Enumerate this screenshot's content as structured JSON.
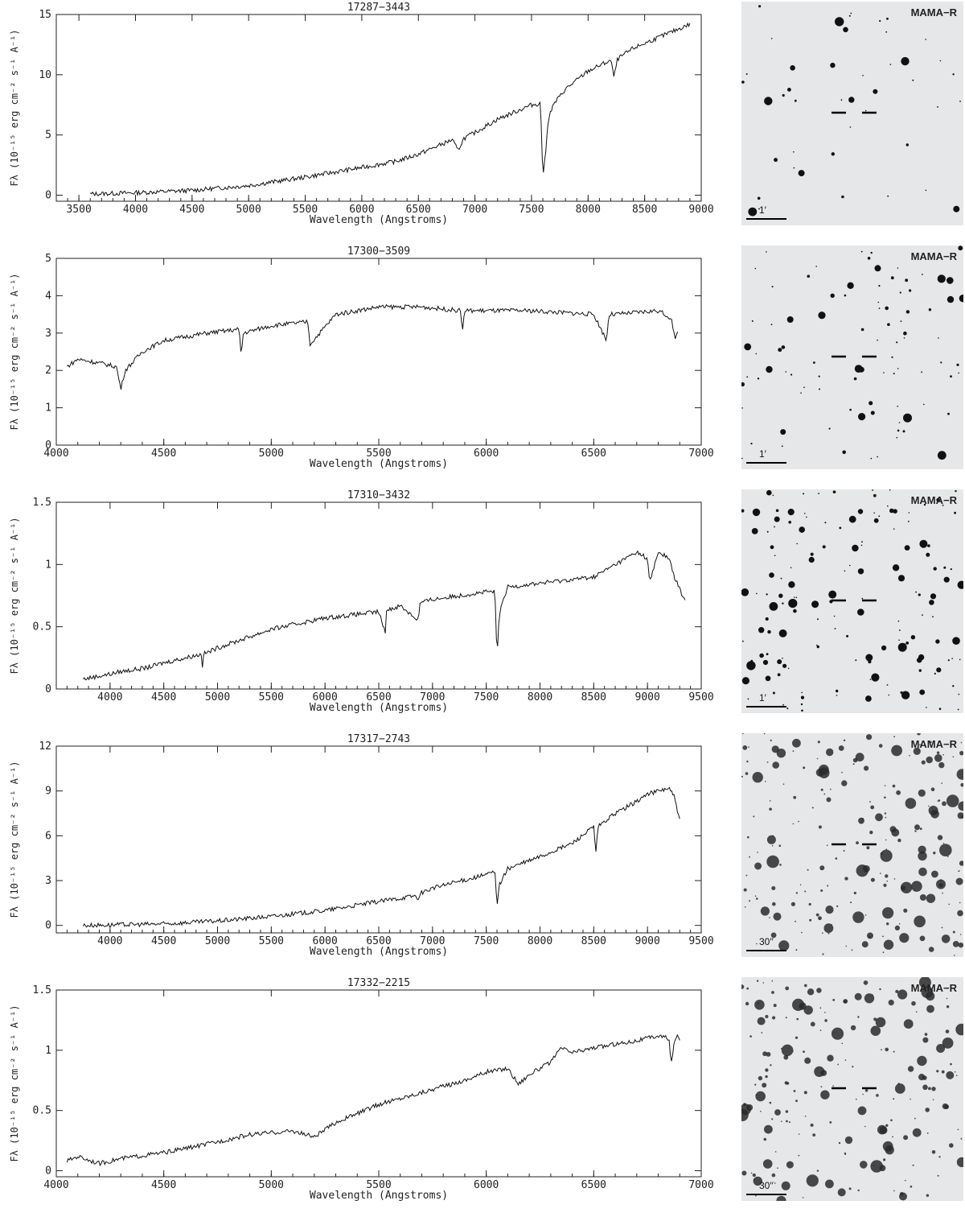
{
  "chart_data": [
    {
      "type": "line",
      "title": "17287−3443",
      "xlabel": "Wavelength (Angstroms)",
      "ylabel": "Fλ (10⁻¹⁵ erg cm⁻² s⁻¹ A⁻¹)",
      "xlim": [
        3300,
        9000
      ],
      "ylim": [
        -0.5,
        15
      ],
      "xticks": [
        3500,
        4000,
        4500,
        5000,
        5500,
        6000,
        6500,
        7000,
        7500,
        8000,
        8500,
        9000
      ],
      "yticks": [
        0,
        5,
        10,
        15
      ],
      "series": [
        {
          "x": [
            3600,
            4000,
            4500,
            5000,
            5500,
            6000,
            6300,
            6500,
            6800,
            6850,
            6900,
            7000,
            7200,
            7500,
            7580,
            7600,
            7620,
            7650,
            7700,
            7800,
            8000,
            8200,
            8230,
            8260,
            8400,
            8600,
            8800,
            8900
          ],
          "y": [
            0.1,
            0.2,
            0.4,
            0.8,
            1.5,
            2.3,
            2.8,
            3.4,
            4.6,
            3.7,
            4.7,
            5.2,
            6.3,
            7.5,
            7.6,
            1.6,
            3.0,
            6.5,
            7.6,
            8.8,
            10.3,
            11.2,
            9.8,
            11.3,
            12.2,
            13.0,
            13.8,
            14.2
          ]
        }
      ],
      "finder": {
        "label": "MAMA−R",
        "scale": "1′"
      }
    },
    {
      "type": "line",
      "title": "17300−3509",
      "xlabel": "Wavelength (Angstroms)",
      "ylabel": "Fλ (10⁻¹⁵ erg cm⁻² s⁻¹ A⁻¹)",
      "xlim": [
        4000,
        7000
      ],
      "ylim": [
        0,
        5
      ],
      "xticks": [
        4000,
        4500,
        5000,
        5500,
        6000,
        6500,
        7000
      ],
      "yticks": [
        0,
        1,
        2,
        3,
        4,
        5
      ],
      "series": [
        {
          "x": [
            4050,
            4100,
            4200,
            4280,
            4300,
            4320,
            4400,
            4500,
            4700,
            4850,
            4860,
            4870,
            5000,
            5170,
            5180,
            5300,
            5500,
            5700,
            5880,
            5890,
            5900,
            6200,
            6500,
            6560,
            6570,
            6600,
            6800,
            6860,
            6880,
            6890
          ],
          "y": [
            2.1,
            2.3,
            2.2,
            2.1,
            1.5,
            2.0,
            2.5,
            2.8,
            3.0,
            3.1,
            2.4,
            3.0,
            3.2,
            3.3,
            2.7,
            3.5,
            3.7,
            3.7,
            3.6,
            3.1,
            3.6,
            3.6,
            3.5,
            2.8,
            3.5,
            3.5,
            3.6,
            3.4,
            2.8,
            3.0
          ]
        }
      ],
      "finder": {
        "label": "MAMA−R",
        "scale": "1′"
      }
    },
    {
      "type": "line",
      "title": "17310−3432",
      "xlabel": "Wavelength (Angstroms)",
      "ylabel": "Fλ (10⁻¹⁵ erg cm⁻² s⁻¹ A⁻¹)",
      "xlim": [
        3500,
        9500
      ],
      "ylim": [
        0,
        1.5
      ],
      "xticks": [
        4000,
        4500,
        5000,
        5500,
        6000,
        6500,
        7000,
        7500,
        8000,
        8500,
        9000,
        9500
      ],
      "yticks": [
        0,
        0.5,
        1,
        1.5
      ],
      "series": [
        {
          "x": [
            3750,
            4000,
            4100,
            4340,
            4500,
            4850,
            4860,
            4870,
            5000,
            5500,
            6000,
            6500,
            6560,
            6570,
            6700,
            6870,
            6880,
            7000,
            7500,
            7580,
            7600,
            7620,
            7700,
            8000,
            8500,
            8700,
            8800,
            8900,
            9000,
            9020,
            9100,
            9200,
            9250,
            9350
          ],
          "y": [
            0.08,
            0.12,
            0.14,
            0.17,
            0.21,
            0.28,
            0.18,
            0.28,
            0.33,
            0.48,
            0.57,
            0.62,
            0.45,
            0.63,
            0.67,
            0.55,
            0.69,
            0.72,
            0.78,
            0.78,
            0.25,
            0.6,
            0.82,
            0.85,
            0.9,
            1.0,
            1.05,
            1.1,
            1.05,
            0.85,
            1.1,
            1.05,
            0.9,
            0.7
          ]
        }
      ],
      "finder": {
        "label": "MAMA−R",
        "scale": "1′"
      }
    },
    {
      "type": "line",
      "title": "17317−2743",
      "xlabel": "Wavelength (Angstroms)",
      "ylabel": "Fλ (10⁻¹⁵ erg cm⁻² s⁻¹ A⁻¹)",
      "xlim": [
        3500,
        9500
      ],
      "ylim": [
        -0.5,
        12
      ],
      "xticks": [
        4000,
        4500,
        5000,
        5500,
        6000,
        6500,
        7000,
        7500,
        8000,
        8500,
        9000,
        9500
      ],
      "yticks": [
        0,
        3,
        6,
        9,
        12
      ],
      "series": [
        {
          "x": [
            3750,
            4500,
            5000,
            5500,
            6000,
            6500,
            6850,
            6870,
            6900,
            7000,
            7500,
            7580,
            7600,
            7620,
            7700,
            8000,
            8300,
            8500,
            8520,
            8540,
            8700,
            8900,
            9000,
            9200,
            9250,
            9300
          ],
          "y": [
            0.0,
            0.1,
            0.3,
            0.6,
            1.0,
            1.6,
            2.0,
            1.7,
            2.2,
            2.5,
            3.4,
            3.6,
            1.4,
            2.7,
            3.8,
            4.6,
            5.5,
            6.6,
            4.8,
            6.6,
            7.5,
            8.3,
            8.8,
            9.2,
            8.6,
            7.0
          ]
        }
      ],
      "finder": {
        "label": "MAMA−R",
        "scale": "30′′"
      }
    },
    {
      "type": "line",
      "title": "17332−2215",
      "xlabel": "Wavelength (Angstroms)",
      "ylabel": "Fλ (10⁻¹⁵ erg cm⁻² s⁻¹ A⁻¹)",
      "xlim": [
        4000,
        7000
      ],
      "ylim": [
        -0.05,
        1.5
      ],
      "xticks": [
        4000,
        4500,
        5000,
        5500,
        6000,
        6500,
        7000
      ],
      "yticks": [
        0,
        0.5,
        1,
        1.5
      ],
      "series": [
        {
          "x": [
            4050,
            4100,
            4200,
            4300,
            4500,
            4700,
            4900,
            5100,
            5200,
            5300,
            5500,
            5700,
            5900,
            6000,
            6100,
            6150,
            6200,
            6300,
            6350,
            6400,
            6500,
            6600,
            6700,
            6800,
            6850,
            6860,
            6880,
            6900
          ],
          "y": [
            0.08,
            0.12,
            0.06,
            0.1,
            0.15,
            0.22,
            0.3,
            0.33,
            0.28,
            0.4,
            0.55,
            0.65,
            0.75,
            0.82,
            0.85,
            0.72,
            0.8,
            0.9,
            1.02,
            0.98,
            1.02,
            1.05,
            1.08,
            1.12,
            1.1,
            0.88,
            1.12,
            1.1
          ]
        }
      ],
      "finder": {
        "label": "MAMA−R",
        "scale": "30′′"
      }
    }
  ]
}
